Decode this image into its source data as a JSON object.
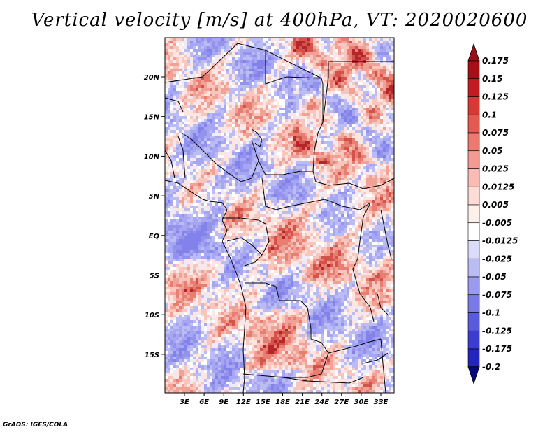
{
  "title": "Vertical velocity [m/s] at 400hPa, VT: 2020020600",
  "credit": "GrADS: IGES/COLA",
  "map": {
    "lon_ticks": [
      "3E",
      "6E",
      "9E",
      "12E",
      "15E",
      "18E",
      "21E",
      "24E",
      "27E",
      "30E",
      "33E"
    ],
    "lat_ticks": [
      "20N",
      "15N",
      "10N",
      "5N",
      "EQ",
      "5S",
      "10S",
      "15S"
    ]
  },
  "colorbar": {
    "labels": [
      "0.175",
      "0.15",
      "0.125",
      "0.1",
      "0.075",
      "0.05",
      "0.025",
      "0.0125",
      "0.005",
      "-0.005",
      "-0.0125",
      "-0.025",
      "-0.05",
      "-0.075",
      "-0.1",
      "-0.125",
      "-0.175",
      "-0.2"
    ],
    "colors": [
      "#a50f15",
      "#c41a22",
      "#d73a35",
      "#e35a52",
      "#ec7a70",
      "#f39b92",
      "#f8bcb4",
      "#fcdcd6",
      "#fff0ec",
      "#ffffff",
      "#dcdcfa",
      "#bcbcf5",
      "#9a9aee",
      "#7a7ae6",
      "#5a5adc",
      "#3c3cd0",
      "#2424c0",
      "#1010a8"
    ],
    "top_color": "#96101a",
    "bottom_color": "#08087a"
  }
}
